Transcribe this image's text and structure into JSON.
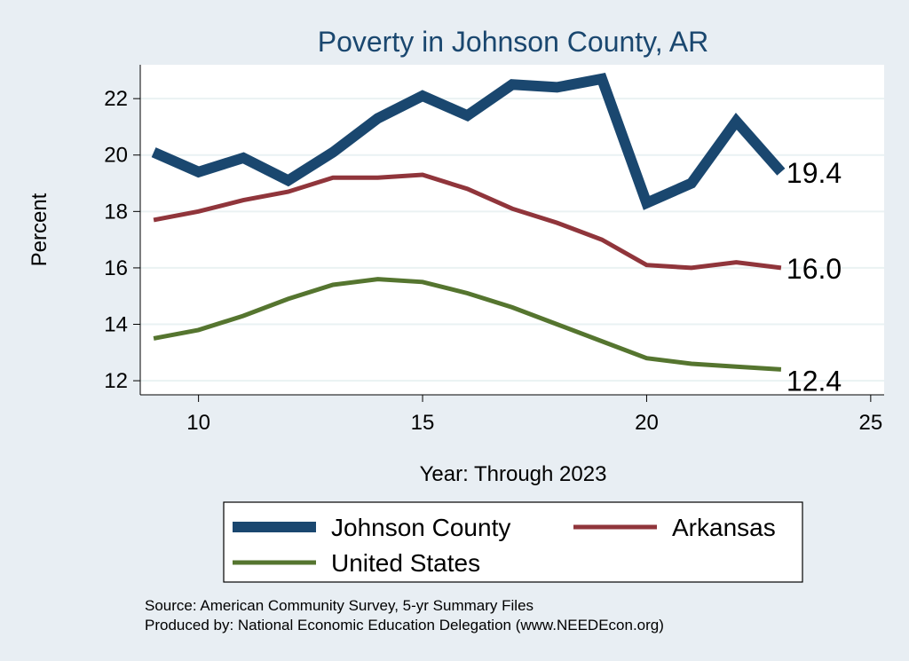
{
  "chart_data": {
    "type": "line",
    "title": "Poverty in Johnson County, AR",
    "xlabel": "Year: Through 2023",
    "ylabel": "Percent",
    "xlim": [
      8.7,
      25.3
    ],
    "ylim": [
      11.5,
      23.2
    ],
    "xticks": [
      10,
      15,
      20,
      25
    ],
    "yticks": [
      12,
      14,
      16,
      18,
      20,
      22
    ],
    "x": [
      9,
      10,
      11,
      12,
      13,
      14,
      15,
      16,
      17,
      18,
      19,
      20,
      21,
      22,
      23
    ],
    "series": [
      {
        "name": "Johnson County",
        "color": "#1a476f",
        "values": [
          20.1,
          19.4,
          19.9,
          19.1,
          20.1,
          21.3,
          22.1,
          21.4,
          22.5,
          22.4,
          22.7,
          18.3,
          19.0,
          21.2,
          19.4
        ],
        "end_label": "19.4"
      },
      {
        "name": "Arkansas",
        "color": "#90353b",
        "values": [
          17.7,
          18.0,
          18.4,
          18.7,
          19.2,
          19.2,
          19.3,
          18.8,
          18.1,
          17.6,
          17.0,
          16.1,
          16.0,
          16.2,
          16.0
        ],
        "end_label": "16.0"
      },
      {
        "name": "United States",
        "color": "#55752f",
        "values": [
          13.5,
          13.8,
          14.3,
          14.9,
          15.4,
          15.6,
          15.5,
          15.1,
          14.6,
          14.0,
          13.4,
          12.8,
          12.6,
          12.5,
          12.4
        ],
        "end_label": "12.4"
      }
    ],
    "legend_position": "bottom",
    "grid": true
  },
  "footer": {
    "source": "Source: American Community Survey, 5-yr Summary Files",
    "produced_by": "Produced by: National Economic Education Delegation (www.NEEDEcon.org)"
  }
}
